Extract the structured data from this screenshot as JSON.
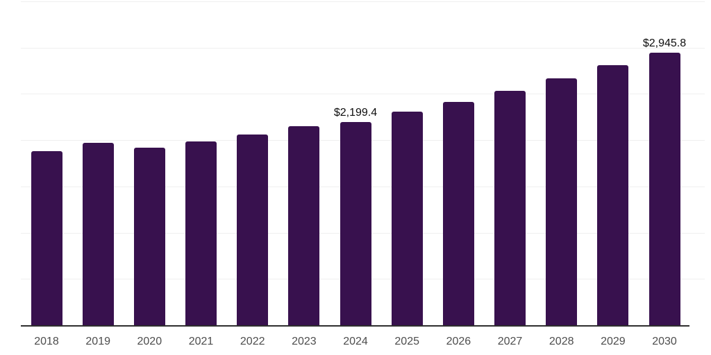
{
  "chart_data": {
    "type": "bar",
    "title": "",
    "xlabel": "",
    "ylabel": "",
    "categories": [
      "2018",
      "2019",
      "2020",
      "2021",
      "2022",
      "2023",
      "2024",
      "2025",
      "2026",
      "2027",
      "2028",
      "2029",
      "2030"
    ],
    "values": [
      1883,
      1975,
      1916,
      1990,
      2065,
      2150,
      2199.4,
      2308,
      2415,
      2533,
      2665,
      2810,
      2945.8
    ],
    "data_labels": [
      "",
      "",
      "",
      "",
      "",
      "",
      "$2,199.4",
      "",
      "",
      "",
      "",
      "",
      "$2,945.8"
    ],
    "ylim": [
      0,
      3500
    ],
    "gridline_step": 500,
    "grid": "horizontal-only",
    "legend_position": "none",
    "colors": {
      "bar": "#38114E",
      "gridline": "#EFEFEF",
      "axis_line": "#2E2E2E",
      "tick_label": "#4D4D4D",
      "data_label": "#0D0D0D",
      "background": "#FFFFFF"
    }
  }
}
